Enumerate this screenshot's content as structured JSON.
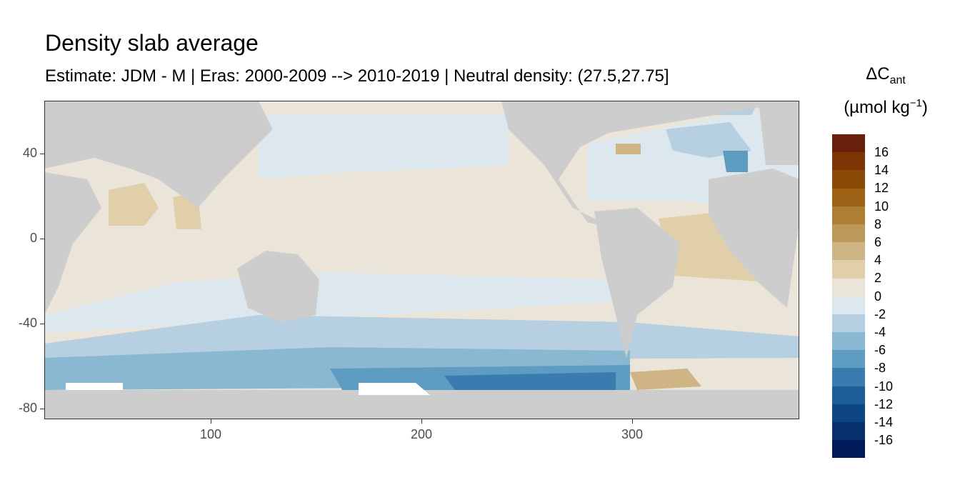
{
  "title": "Density slab average",
  "subtitle": "Estimate: JDM - M | Eras: 2000-2009 --> 2010-2019 | Neutral density: (27.5,27.75]",
  "legend": {
    "title_main": "ΔC",
    "title_sub": "ant",
    "unit_text": "(µmol kg",
    "unit_exp": "−1",
    "unit_close": ")",
    "labels": [
      "16",
      "14",
      "12",
      "10",
      "8",
      "6",
      "4",
      "2",
      "0",
      "-2",
      "-4",
      "-6",
      "-8",
      "-10",
      "-12",
      "-14",
      "-16"
    ],
    "colors": [
      "#67200a",
      "#7d3505",
      "#8a4a06",
      "#9c6114",
      "#ae7e32",
      "#bd985b",
      "#cfb485",
      "#e1cfaa",
      "#ebe4d8",
      "#dde7ee",
      "#b6d0e1",
      "#8ab8d3",
      "#5f9cc2",
      "#3a7caf",
      "#1c5f98",
      "#0d4783",
      "#06306e",
      "#001a5a"
    ]
  },
  "axes": {
    "x_ticks": [
      "100",
      "200",
      "300"
    ],
    "y_ticks": [
      "40",
      "0",
      "-40",
      "-80"
    ]
  },
  "colors": {
    "land": "#cdcdcd",
    "nodata": "#ffffff"
  }
}
